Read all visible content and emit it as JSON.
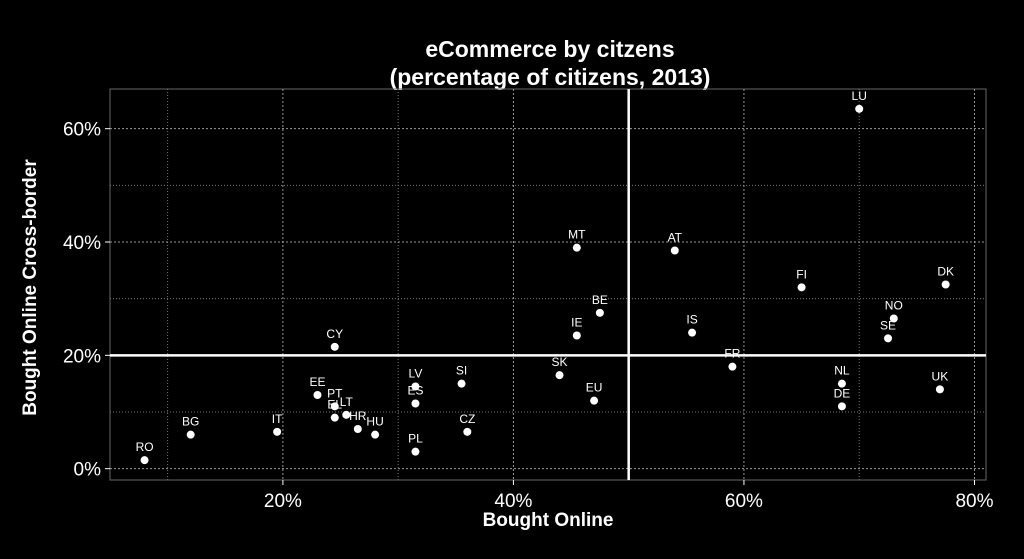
{
  "chart_data": {
    "type": "scatter",
    "title": "eCommerce by citzens",
    "subtitle": "(percentage of citizens, 2013)",
    "xlabel": "Bought Online",
    "ylabel": "Bought Online Cross-border",
    "xlim": [
      5,
      81
    ],
    "ylim": [
      -2,
      67
    ],
    "x_ticks": [
      "20%",
      "40%",
      "60%",
      "80%"
    ],
    "x_tick_values": [
      20,
      40,
      60,
      80
    ],
    "y_ticks": [
      "0%",
      "20%",
      "40%",
      "60%"
    ],
    "y_tick_values": [
      0,
      20,
      40,
      60
    ],
    "grid": true,
    "reference_lines": {
      "x": 50,
      "y": 20
    },
    "points": [
      {
        "label": "RO",
        "x": 8,
        "y": 1.5
      },
      {
        "label": "BG",
        "x": 12,
        "y": 6
      },
      {
        "label": "IT",
        "x": 19.5,
        "y": 6.5
      },
      {
        "label": "EE",
        "x": 23,
        "y": 13
      },
      {
        "label": "PT",
        "x": 24.5,
        "y": 11
      },
      {
        "label": "EL",
        "x": 24.5,
        "y": 9
      },
      {
        "label": "LT",
        "x": 25.5,
        "y": 9.5
      },
      {
        "label": "CY",
        "x": 24.5,
        "y": 21.5
      },
      {
        "label": "HR",
        "x": 26.5,
        "y": 7
      },
      {
        "label": "HU",
        "x": 28,
        "y": 6
      },
      {
        "label": "LV",
        "x": 31.5,
        "y": 14.5
      },
      {
        "label": "ES",
        "x": 31.5,
        "y": 11.5
      },
      {
        "label": "PL",
        "x": 31.5,
        "y": 3
      },
      {
        "label": "SI",
        "x": 35.5,
        "y": 15
      },
      {
        "label": "CZ",
        "x": 36,
        "y": 6.5
      },
      {
        "label": "SK",
        "x": 44,
        "y": 16.5
      },
      {
        "label": "IE",
        "x": 45.5,
        "y": 23.5
      },
      {
        "label": "MT",
        "x": 45.5,
        "y": 39
      },
      {
        "label": "EU",
        "x": 47,
        "y": 12
      },
      {
        "label": "BE",
        "x": 47.5,
        "y": 27.5
      },
      {
        "label": "AT",
        "x": 54,
        "y": 38.5
      },
      {
        "label": "IS",
        "x": 55.5,
        "y": 24
      },
      {
        "label": "FR",
        "x": 59,
        "y": 18
      },
      {
        "label": "FI",
        "x": 65,
        "y": 32
      },
      {
        "label": "DE",
        "x": 68.5,
        "y": 11
      },
      {
        "label": "NL",
        "x": 68.5,
        "y": 15
      },
      {
        "label": "LU",
        "x": 70,
        "y": 63.5
      },
      {
        "label": "SE",
        "x": 72.5,
        "y": 23
      },
      {
        "label": "NO",
        "x": 73,
        "y": 26.5
      },
      {
        "label": "UK",
        "x": 77,
        "y": 14
      },
      {
        "label": "DK",
        "x": 77.5,
        "y": 32.5
      }
    ]
  }
}
